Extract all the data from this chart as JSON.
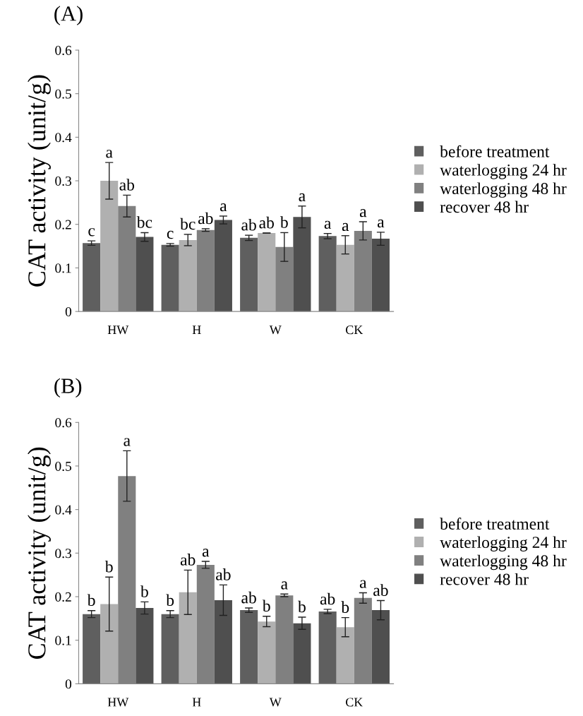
{
  "chart_data": [
    {
      "type": "bar",
      "title": "(A)",
      "ylabel": "CAT activity (unit/g)",
      "categories": [
        "HW",
        "H",
        "W",
        "CK"
      ],
      "ylim": [
        0,
        0.6
      ],
      "yticks": [
        0,
        0.1,
        0.2,
        0.3,
        0.4,
        0.5,
        0.6
      ],
      "grid": false,
      "legend": "right",
      "series": [
        {
          "name": "before treatment",
          "color": "#5f5f5f",
          "values": [
            0.157,
            0.153,
            0.169,
            0.173
          ],
          "errors": [
            0.005,
            0.003,
            0.006,
            0.006
          ],
          "value_labels": [
            "c",
            "c",
            "ab",
            "a"
          ]
        },
        {
          "name": "waterlogging 24 hr",
          "color": "#b0b0b0",
          "values": [
            0.3,
            0.164,
            0.18,
            0.153
          ],
          "errors": [
            0.042,
            0.013,
            0.0,
            0.021
          ],
          "value_labels": [
            "a",
            "bc",
            "ab",
            "a"
          ]
        },
        {
          "name": "waterlogging 48 hr",
          "color": "#808080",
          "values": [
            0.242,
            0.187,
            0.148,
            0.185
          ],
          "errors": [
            0.025,
            0.003,
            0.033,
            0.021
          ],
          "value_labels": [
            "ab",
            "ab",
            "b",
            "a"
          ]
        },
        {
          "name": "recover 48 hr",
          "color": "#4f4f4f",
          "values": [
            0.171,
            0.21,
            0.217,
            0.167
          ],
          "errors": [
            0.01,
            0.009,
            0.025,
            0.015
          ],
          "value_labels": [
            "bc",
            "a",
            "a",
            "a"
          ]
        }
      ]
    },
    {
      "type": "bar",
      "title": "(B)",
      "ylabel": "CAT activity (unit/g)",
      "categories": [
        "HW",
        "H",
        "W",
        "CK"
      ],
      "ylim": [
        0,
        0.6
      ],
      "yticks": [
        0,
        0.1,
        0.2,
        0.3,
        0.4,
        0.5,
        0.6
      ],
      "grid": false,
      "legend": "right",
      "series": [
        {
          "name": "before treatment",
          "color": "#5f5f5f",
          "values": [
            0.16,
            0.16,
            0.169,
            0.166
          ],
          "errors": [
            0.008,
            0.008,
            0.005,
            0.005
          ],
          "value_labels": [
            "b",
            "b",
            "ab",
            "ab"
          ]
        },
        {
          "name": "waterlogging 24 hr",
          "color": "#b0b0b0",
          "values": [
            0.183,
            0.21,
            0.143,
            0.13
          ],
          "errors": [
            0.062,
            0.051,
            0.012,
            0.022
          ],
          "value_labels": [
            "b",
            "ab",
            "b",
            "b"
          ]
        },
        {
          "name": "waterlogging 48 hr",
          "color": "#808080",
          "values": [
            0.477,
            0.273,
            0.203,
            0.197
          ],
          "errors": [
            0.058,
            0.008,
            0.003,
            0.012
          ],
          "value_labels": [
            "a",
            "a",
            "a",
            "a"
          ]
        },
        {
          "name": "recover 48 hr",
          "color": "#4f4f4f",
          "values": [
            0.174,
            0.192,
            0.139,
            0.169
          ],
          "errors": [
            0.014,
            0.035,
            0.014,
            0.022
          ],
          "value_labels": [
            "b",
            "ab",
            "b",
            "ab"
          ]
        }
      ]
    }
  ]
}
